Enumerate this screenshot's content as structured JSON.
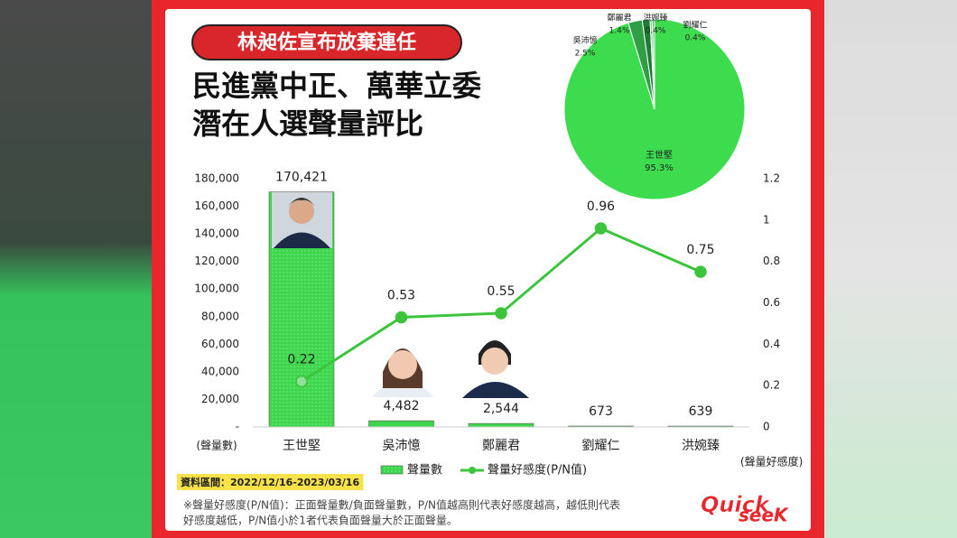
{
  "badge": "林昶佐宣布放棄連任",
  "heading": [
    "民進黨中正、萬華立委",
    "潛在人選聲量評比"
  ],
  "chart_data": [
    {
      "type": "bar",
      "categories": [
        "王世堅",
        "吳沛憶",
        "鄭麗君",
        "劉耀仁",
        "洪婉臻"
      ],
      "ylabel": "(聲量數)",
      "y2label": "(聲量好感度)",
      "series": [
        {
          "name": "聲量數",
          "type": "bar",
          "color": "#3dd64c",
          "values": [
            170421,
            4482,
            2544,
            673,
            639
          ],
          "value_labels": [
            "170,421",
            "4,482",
            "2,544",
            "673",
            "639"
          ]
        },
        {
          "name": "聲量好感度(P/N值)",
          "type": "line",
          "axis": "y2",
          "color": "#3cc43c",
          "values": [
            0.22,
            0.53,
            0.55,
            0.96,
            0.75
          ]
        }
      ],
      "ylim": [
        0,
        180000
      ],
      "yticks": [
        {
          "value": 0,
          "label": "-"
        },
        {
          "value": 20000,
          "label": "20,000"
        },
        {
          "value": 40000,
          "label": "40,000"
        },
        {
          "value": 60000,
          "label": "60,000"
        },
        {
          "value": 80000,
          "label": "80,000"
        },
        {
          "value": 100000,
          "label": "100,000"
        },
        {
          "value": 120000,
          "label": "120,000"
        },
        {
          "value": 140000,
          "label": "140,000"
        },
        {
          "value": 160000,
          "label": "160,000"
        },
        {
          "value": 180000,
          "label": "180,000"
        }
      ],
      "y2lim": [
        0,
        1.2
      ],
      "y2ticks": [
        0,
        0.2,
        0.4,
        0.6,
        0.8,
        1,
        1.2
      ]
    },
    {
      "type": "pie",
      "categories": [
        "王世堅",
        "吳沛憶",
        "鄭麗君",
        "劉耀仁",
        "洪婉臻"
      ],
      "values": [
        95.3,
        2.5,
        1.4,
        0.4,
        0.4
      ],
      "value_labels": [
        "95.3%",
        "2.5%",
        "1.4%",
        "0.4%",
        "0.4%"
      ],
      "colors": [
        "#3ddc4e",
        "#2f9e45",
        "#1f7a36",
        "#7fd88a",
        "#5bbf6a"
      ]
    }
  ],
  "source": "資料區間：2022/12/16-2023/03/16",
  "note": [
    "※聲量好感度(P/N值)：正面聲量數/負面聲量數，P/N值越高則代表好感度越高，越低則代表",
    "好感度越低，P/N值小於1者代表負面聲量大於正面聲量。"
  ],
  "logo": [
    "Quick",
    "seeK"
  ]
}
